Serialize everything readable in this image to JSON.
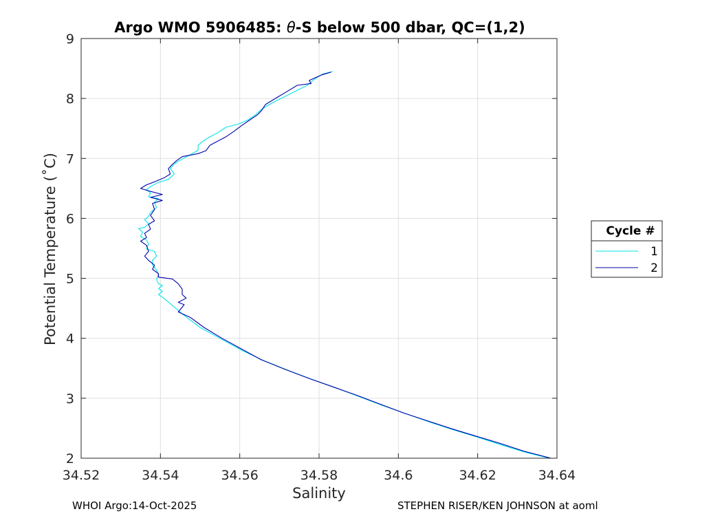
{
  "chart_data": {
    "type": "line",
    "title_prefix": "Argo WMO 5906485: ",
    "title_symbol": "θ",
    "title_suffix": "-S below 500 dbar,  QC=(1,2)",
    "xlabel": "Salinity",
    "ylabel": "Potential Temperature (˚C)",
    "xlim": [
      34.52,
      34.64
    ],
    "ylim": [
      2,
      9
    ],
    "xticks": [
      34.52,
      34.54,
      34.56,
      34.58,
      34.6,
      34.62,
      34.64
    ],
    "xtick_labels": [
      "34.52",
      "34.54",
      "34.56",
      "34.58",
      "34.6",
      "34.62",
      "34.64"
    ],
    "yticks": [
      2,
      3,
      4,
      5,
      6,
      7,
      8,
      9
    ],
    "ytick_labels": [
      "2",
      "3",
      "4",
      "5",
      "6",
      "7",
      "8",
      "9"
    ],
    "grid": true,
    "legend_title": "Cycle #",
    "legend_position": "east-outside",
    "series": [
      {
        "name": "1",
        "color": "#00e5e5",
        "points": [
          [
            34.5835,
            8.45
          ],
          [
            34.581,
            8.41
          ],
          [
            34.579,
            8.33
          ],
          [
            34.577,
            8.22
          ],
          [
            34.574,
            8.12
          ],
          [
            34.571,
            8.02
          ],
          [
            34.568,
            7.92
          ],
          [
            34.5655,
            7.82
          ],
          [
            34.564,
            7.73
          ],
          [
            34.562,
            7.64
          ],
          [
            34.5595,
            7.57
          ],
          [
            34.5565,
            7.52
          ],
          [
            34.5545,
            7.43
          ],
          [
            34.5525,
            7.36
          ],
          [
            34.551,
            7.3
          ],
          [
            34.5495,
            7.22
          ],
          [
            34.5495,
            7.14
          ],
          [
            34.5475,
            7.06
          ],
          [
            34.5455,
            6.99
          ],
          [
            34.5435,
            6.91
          ],
          [
            34.5425,
            6.83
          ],
          [
            34.5435,
            6.74
          ],
          [
            34.542,
            6.65
          ],
          [
            34.5395,
            6.6
          ],
          [
            34.5375,
            6.53
          ],
          [
            34.5365,
            6.48
          ],
          [
            34.5375,
            6.42
          ],
          [
            34.537,
            6.36
          ],
          [
            34.5395,
            6.33
          ],
          [
            34.5385,
            6.27
          ],
          [
            34.539,
            6.18
          ],
          [
            34.5375,
            6.1
          ],
          [
            34.537,
            6.03
          ],
          [
            34.536,
            5.98
          ],
          [
            34.537,
            5.91
          ],
          [
            34.536,
            5.85
          ],
          [
            34.5345,
            5.83
          ],
          [
            34.5355,
            5.77
          ],
          [
            34.535,
            5.7
          ],
          [
            34.5365,
            5.64
          ],
          [
            34.537,
            5.57
          ],
          [
            34.5365,
            5.49
          ],
          [
            34.5385,
            5.45
          ],
          [
            34.539,
            5.37
          ],
          [
            34.538,
            5.3
          ],
          [
            34.538,
            5.22
          ],
          [
            34.539,
            5.14
          ],
          [
            34.5395,
            5.06
          ],
          [
            34.539,
            4.98
          ],
          [
            34.5395,
            4.91
          ],
          [
            34.5405,
            4.88
          ],
          [
            34.5395,
            4.83
          ],
          [
            34.5405,
            4.78
          ],
          [
            34.5395,
            4.73
          ],
          [
            34.541,
            4.66
          ],
          [
            34.543,
            4.55
          ],
          [
            34.546,
            4.38
          ],
          [
            34.55,
            4.18
          ],
          [
            34.555,
            4.0
          ],
          [
            34.5605,
            3.8
          ],
          [
            34.566,
            3.63
          ],
          [
            34.572,
            3.47
          ],
          [
            34.578,
            3.32
          ],
          [
            34.584,
            3.18
          ],
          [
            34.59,
            3.03
          ],
          [
            34.596,
            2.88
          ],
          [
            34.602,
            2.74
          ],
          [
            34.608,
            2.6
          ],
          [
            34.614,
            2.47
          ],
          [
            34.62,
            2.35
          ],
          [
            34.626,
            2.22
          ],
          [
            34.632,
            2.1
          ],
          [
            34.638,
            2.0
          ]
        ]
      },
      {
        "name": "2",
        "color": "#0000a8",
        "points": [
          [
            34.583,
            8.44
          ],
          [
            34.5805,
            8.39
          ],
          [
            34.5775,
            8.3
          ],
          [
            34.578,
            8.25
          ],
          [
            34.5745,
            8.22
          ],
          [
            34.572,
            8.12
          ],
          [
            34.5695,
            8.02
          ],
          [
            34.5665,
            7.9
          ],
          [
            34.5655,
            7.8
          ],
          [
            34.5645,
            7.73
          ],
          [
            34.5625,
            7.64
          ],
          [
            34.5605,
            7.55
          ],
          [
            34.5585,
            7.45
          ],
          [
            34.5565,
            7.36
          ],
          [
            34.5545,
            7.29
          ],
          [
            34.5525,
            7.22
          ],
          [
            34.5515,
            7.13
          ],
          [
            34.5495,
            7.08
          ],
          [
            34.5455,
            7.03
          ],
          [
            34.544,
            6.96
          ],
          [
            34.543,
            6.9
          ],
          [
            34.542,
            6.83
          ],
          [
            34.5425,
            6.74
          ],
          [
            34.541,
            6.68
          ],
          [
            34.5385,
            6.61
          ],
          [
            34.5365,
            6.56
          ],
          [
            34.535,
            6.5
          ],
          [
            34.5375,
            6.45
          ],
          [
            34.5405,
            6.4
          ],
          [
            34.5375,
            6.35
          ],
          [
            34.5405,
            6.3
          ],
          [
            34.538,
            6.25
          ],
          [
            34.5385,
            6.15
          ],
          [
            34.5375,
            6.05
          ],
          [
            34.5385,
            5.96
          ],
          [
            34.537,
            5.9
          ],
          [
            34.5375,
            5.82
          ],
          [
            34.536,
            5.75
          ],
          [
            34.5365,
            5.68
          ],
          [
            34.535,
            5.62
          ],
          [
            34.5365,
            5.55
          ],
          [
            34.537,
            5.45
          ],
          [
            34.536,
            5.37
          ],
          [
            34.537,
            5.3
          ],
          [
            34.5385,
            5.22
          ],
          [
            34.538,
            5.15
          ],
          [
            34.5395,
            5.08
          ],
          [
            34.5395,
            5.02
          ],
          [
            34.543,
            4.99
          ],
          [
            34.5445,
            4.91
          ],
          [
            34.5455,
            4.82
          ],
          [
            34.5455,
            4.73
          ],
          [
            34.5465,
            4.67
          ],
          [
            34.5445,
            4.6
          ],
          [
            34.546,
            4.56
          ],
          [
            34.5445,
            4.44
          ],
          [
            34.5475,
            4.35
          ],
          [
            34.551,
            4.18
          ],
          [
            34.5555,
            4.0
          ],
          [
            34.5605,
            3.82
          ],
          [
            34.5655,
            3.64
          ],
          [
            34.5715,
            3.48
          ],
          [
            34.5775,
            3.33
          ],
          [
            34.5835,
            3.19
          ],
          [
            34.5895,
            3.05
          ],
          [
            34.5955,
            2.9
          ],
          [
            34.6015,
            2.75
          ],
          [
            34.6075,
            2.62
          ],
          [
            34.6135,
            2.49
          ],
          [
            34.6195,
            2.37
          ],
          [
            34.6255,
            2.25
          ],
          [
            34.6315,
            2.12
          ],
          [
            34.6385,
            2.0
          ]
        ]
      }
    ]
  },
  "footer": {
    "left": "WHOI Argo:14-Oct-2025",
    "right": "STEPHEN RISER/KEN JOHNSON at aoml"
  }
}
